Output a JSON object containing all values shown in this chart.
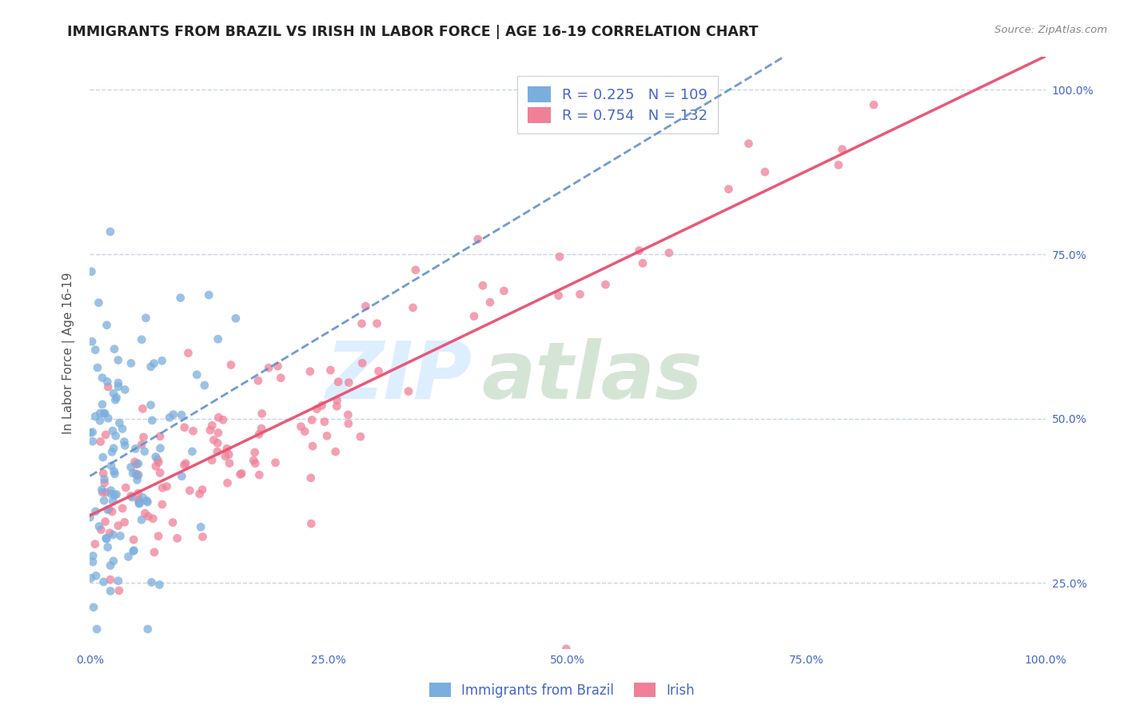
{
  "title": "IMMIGRANTS FROM BRAZIL VS IRISH IN LABOR FORCE | AGE 16-19 CORRELATION CHART",
  "source": "Source: ZipAtlas.com",
  "ylabel": "In Labor Force | Age 16-19",
  "xlim": [
    0.0,
    1.0
  ],
  "ylim": [
    0.15,
    1.05
  ],
  "x_ticks": [
    0.0,
    0.25,
    0.5,
    0.75,
    1.0
  ],
  "x_tick_labels": [
    "0.0%",
    "25.0%",
    "50.0%",
    "75.0%",
    "100.0%"
  ],
  "y_ticks": [
    0.25,
    0.5,
    0.75,
    1.0
  ],
  "y_tick_labels": [
    "25.0%",
    "50.0%",
    "75.0%",
    "100.0%"
  ],
  "brazil_R": 0.225,
  "brazil_N": 109,
  "irish_R": 0.754,
  "irish_N": 132,
  "brazil_color": "#7aaedd",
  "irish_color": "#f08098",
  "brazil_line_color": "#6090cc",
  "irish_line_color": "#e85070",
  "background_color": "#ffffff",
  "grid_color": "#c8d4e8",
  "title_fontsize": 12.5,
  "tick_fontsize": 10,
  "tick_color": "#4466cc",
  "label_color": "#555555",
  "source_color": "#888888",
  "legend_text_color": "#4466cc",
  "watermark_zip_color": "#ddeeff",
  "watermark_atlas_color": "#c8ddc8"
}
